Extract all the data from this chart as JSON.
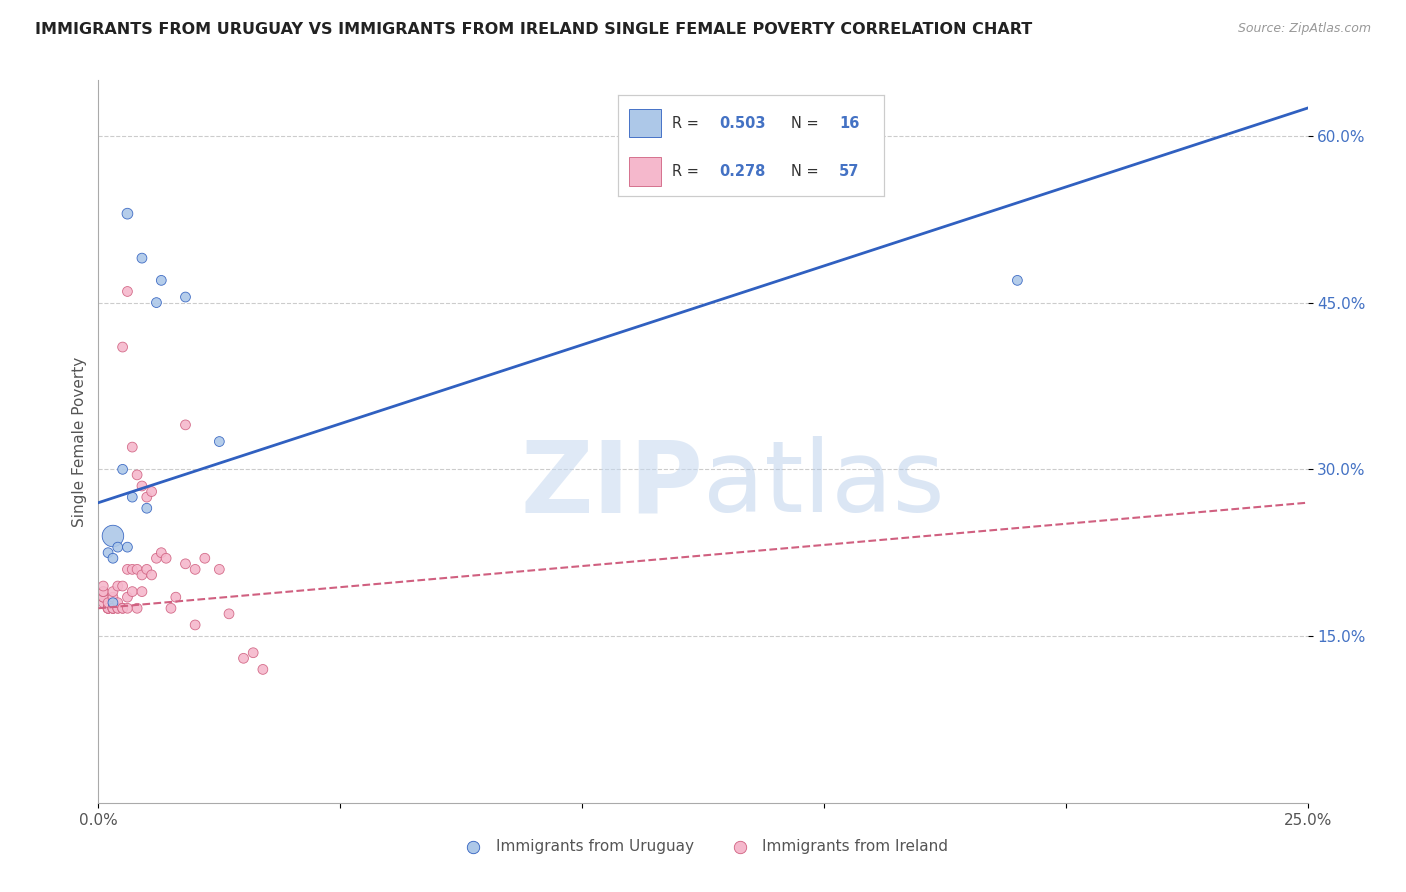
{
  "title": "IMMIGRANTS FROM URUGUAY VS IMMIGRANTS FROM IRELAND SINGLE FEMALE POVERTY CORRELATION CHART",
  "source": "Source: ZipAtlas.com",
  "ylabel": "Single Female Poverty",
  "xlim": [
    0,
    0.25
  ],
  "ylim": [
    0,
    0.65
  ],
  "xticks": [
    0.0,
    0.05,
    0.1,
    0.15,
    0.2,
    0.25
  ],
  "yticks": [
    0.15,
    0.3,
    0.45,
    0.6
  ],
  "ytick_labels": [
    "15.0%",
    "30.0%",
    "45.0%",
    "60.0%"
  ],
  "xtick_labels": [
    "0.0%",
    "",
    "",
    "",
    "",
    "25.0%"
  ],
  "legend1_r": "0.503",
  "legend1_n": "16",
  "legend2_r": "0.278",
  "legend2_n": "57",
  "series1_label": "Immigrants from Uruguay",
  "series2_label": "Immigrants from Ireland",
  "series1_color": "#adc8e8",
  "series2_color": "#f5b8cc",
  "line1_color": "#3060c0",
  "line2_color": "#d06080",
  "background_color": "#ffffff",
  "grid_color": "#cccccc",
  "title_color": "#222222",
  "watermark_zip": "ZIP",
  "watermark_atlas": "atlas",
  "series1_x": [
    0.006,
    0.009,
    0.013,
    0.005,
    0.007,
    0.01,
    0.003,
    0.004,
    0.002,
    0.003,
    0.003,
    0.19,
    0.018,
    0.025,
    0.012,
    0.006
  ],
  "series1_y": [
    0.53,
    0.49,
    0.47,
    0.3,
    0.275,
    0.265,
    0.24,
    0.23,
    0.225,
    0.22,
    0.18,
    0.47,
    0.455,
    0.325,
    0.45,
    0.23
  ],
  "series1_size": [
    60,
    50,
    50,
    50,
    50,
    50,
    240,
    50,
    50,
    50,
    50,
    50,
    50,
    50,
    50,
    50
  ],
  "series2_x": [
    0.001,
    0.001,
    0.001,
    0.001,
    0.001,
    0.001,
    0.002,
    0.002,
    0.002,
    0.002,
    0.002,
    0.003,
    0.003,
    0.003,
    0.003,
    0.003,
    0.003,
    0.004,
    0.004,
    0.004,
    0.004,
    0.005,
    0.005,
    0.005,
    0.005,
    0.006,
    0.006,
    0.006,
    0.006,
    0.007,
    0.007,
    0.007,
    0.008,
    0.008,
    0.008,
    0.009,
    0.009,
    0.009,
    0.01,
    0.01,
    0.011,
    0.011,
    0.012,
    0.013,
    0.014,
    0.015,
    0.016,
    0.018,
    0.02,
    0.022,
    0.025,
    0.027,
    0.03,
    0.032,
    0.034,
    0.02,
    0.018
  ],
  "series2_y": [
    0.18,
    0.185,
    0.185,
    0.19,
    0.19,
    0.195,
    0.175,
    0.175,
    0.175,
    0.175,
    0.18,
    0.175,
    0.175,
    0.175,
    0.175,
    0.185,
    0.19,
    0.175,
    0.175,
    0.18,
    0.195,
    0.175,
    0.175,
    0.195,
    0.41,
    0.175,
    0.185,
    0.21,
    0.46,
    0.19,
    0.21,
    0.32,
    0.175,
    0.21,
    0.295,
    0.19,
    0.205,
    0.285,
    0.21,
    0.275,
    0.205,
    0.28,
    0.22,
    0.225,
    0.22,
    0.175,
    0.185,
    0.215,
    0.21,
    0.22,
    0.21,
    0.17,
    0.13,
    0.135,
    0.12,
    0.16,
    0.34
  ],
  "series2_size": [
    50,
    50,
    50,
    50,
    50,
    50,
    50,
    50,
    50,
    50,
    50,
    50,
    50,
    50,
    50,
    50,
    50,
    50,
    50,
    50,
    50,
    50,
    50,
    50,
    50,
    50,
    50,
    50,
    50,
    50,
    50,
    50,
    50,
    50,
    50,
    50,
    50,
    50,
    50,
    50,
    50,
    50,
    50,
    50,
    50,
    50,
    50,
    50,
    50,
    50,
    50,
    50,
    50,
    50,
    50,
    50,
    50
  ],
  "line1_x0": 0.0,
  "line1_x1": 0.25,
  "line1_y0": 0.27,
  "line1_y1": 0.625,
  "line2_x0": 0.0,
  "line2_x1": 0.25,
  "line2_y0": 0.175,
  "line2_y1": 0.27
}
